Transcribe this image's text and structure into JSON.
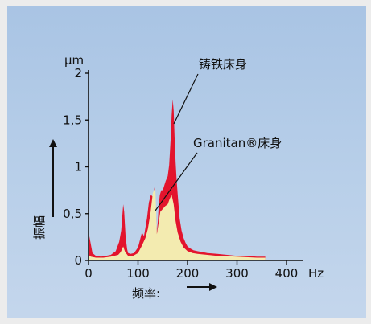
{
  "chart_data": {
    "type": "area",
    "xlabel": "频率:",
    "ylabel": "振幅",
    "yunit": "μm",
    "xunit": "Hz",
    "xlim": [
      0,
      400
    ],
    "ylim": [
      0,
      2
    ],
    "xticks": [
      0,
      100,
      200,
      300,
      400
    ],
    "xtick_labels": [
      "0",
      "100",
      "200",
      "300",
      "400"
    ],
    "yticks": [
      0,
      0.5,
      1,
      1.5,
      2
    ],
    "ytick_labels": [
      "0",
      "0,5",
      "1",
      "1,5",
      "2"
    ],
    "grid": false,
    "series": [
      {
        "name": "铸铁床身",
        "color": "#e3142d",
        "x": [
          0,
          2,
          8,
          15,
          25,
          35,
          45,
          55,
          62,
          66,
          70,
          72,
          75,
          78,
          80,
          85,
          92,
          100,
          108,
          112,
          115,
          118,
          122,
          126,
          130,
          134,
          138,
          140,
          142,
          144,
          147,
          150,
          153,
          156,
          160,
          163,
          166,
          168,
          170,
          172,
          174,
          176,
          178,
          181,
          184,
          188,
          192,
          196,
          200,
          205,
          212,
          220,
          230,
          240,
          250,
          260,
          270,
          280,
          290,
          300,
          310,
          320,
          330,
          340,
          350,
          357
        ],
        "y": [
          0.3,
          0.25,
          0.08,
          0.05,
          0.04,
          0.05,
          0.06,
          0.1,
          0.2,
          0.32,
          0.6,
          0.52,
          0.25,
          0.12,
          0.08,
          0.07,
          0.08,
          0.14,
          0.3,
          0.26,
          0.35,
          0.45,
          0.62,
          0.7,
          0.68,
          0.8,
          0.3,
          0.42,
          0.6,
          0.7,
          0.75,
          0.75,
          0.8,
          0.85,
          0.9,
          1.02,
          1.3,
          1.55,
          1.72,
          1.6,
          1.3,
          1.05,
          0.85,
          0.65,
          0.45,
          0.32,
          0.24,
          0.19,
          0.15,
          0.13,
          0.11,
          0.1,
          0.09,
          0.08,
          0.075,
          0.07,
          0.065,
          0.06,
          0.055,
          0.05,
          0.05,
          0.045,
          0.045,
          0.04,
          0.04,
          0.04
        ]
      },
      {
        "name": "Granitan®床身",
        "color": "#f3ebb0",
        "x": [
          0,
          5,
          15,
          30,
          45,
          60,
          65,
          70,
          74,
          80,
          90,
          100,
          108,
          115,
          120,
          125,
          130,
          135,
          138,
          141,
          145,
          150,
          155,
          160,
          164,
          168,
          172,
          176,
          180,
          186,
          192,
          200,
          210,
          220,
          240,
          260,
          280,
          300,
          320,
          340,
          357
        ],
        "y": [
          0.06,
          0.04,
          0.03,
          0.03,
          0.04,
          0.06,
          0.09,
          0.15,
          0.09,
          0.05,
          0.05,
          0.08,
          0.16,
          0.24,
          0.34,
          0.5,
          0.72,
          0.78,
          0.28,
          0.38,
          0.52,
          0.55,
          0.58,
          0.6,
          0.66,
          0.7,
          0.6,
          0.42,
          0.3,
          0.2,
          0.14,
          0.1,
          0.08,
          0.07,
          0.06,
          0.05,
          0.045,
          0.04,
          0.035,
          0.03,
          0.03
        ]
      }
    ],
    "annotations": [
      {
        "text": "铸铁床身",
        "target_x": 172,
        "target_y": 1.45
      },
      {
        "text": "Granitan®床身",
        "target_x": 135,
        "target_y": 0.5
      }
    ]
  }
}
